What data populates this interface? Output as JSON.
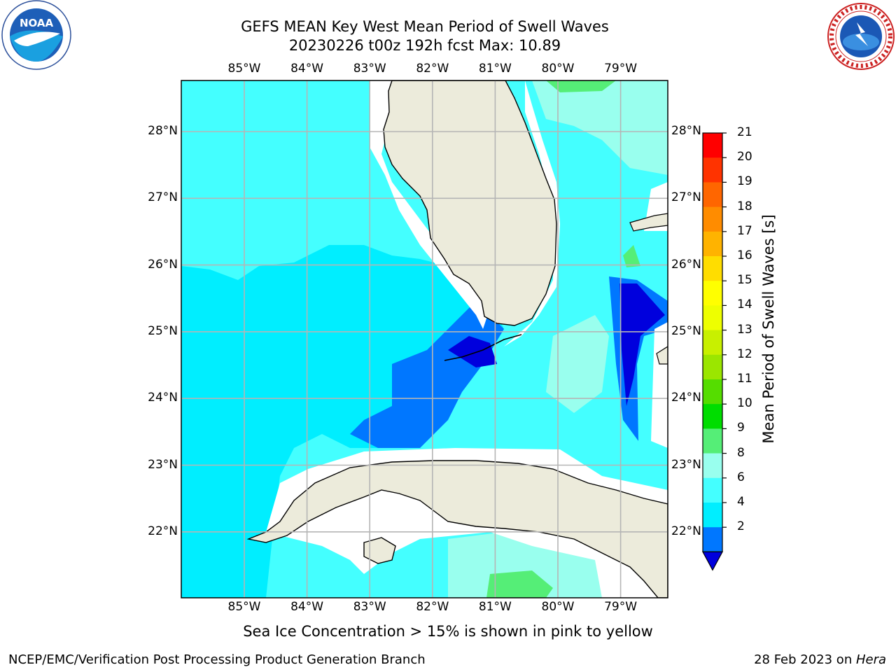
{
  "header": {
    "title_line1": "GEFS MEAN Key West Mean Period of Swell Waves",
    "title_line2": "20230226 t00z 192h fcst   Max: 10.89"
  },
  "logos": {
    "left": {
      "name": "NOAA",
      "icon": "noaa-logo",
      "text": "NOAA"
    },
    "right": {
      "name": "National Weather Service",
      "icon": "nws-logo",
      "text": "NATIONAL WEATHER SERVICE"
    }
  },
  "map": {
    "lon_ticks": [
      "85°W",
      "84°W",
      "83°W",
      "82°W",
      "81°W",
      "80°W",
      "79°W"
    ],
    "lat_ticks": [
      "28°N",
      "27°N",
      "26°N",
      "25°N",
      "24°N",
      "23°N",
      "22°N"
    ],
    "ocean_color": "#44ffff",
    "land_color": "#ecebdb",
    "gridline_color": "#b5b5b5"
  },
  "colorbar": {
    "label": "Mean Period of Swell Waves [s]",
    "ticks": [
      "21",
      "20",
      "19",
      "18",
      "17",
      "16",
      "15",
      "14",
      "13",
      "12",
      "11",
      "10",
      "9",
      "8",
      "6",
      "4",
      "2"
    ],
    "colors": [
      "#ff0000",
      "#ff3300",
      "#ff6600",
      "#ff8c00",
      "#ffb300",
      "#ffdd00",
      "#ffff00",
      "#eeff00",
      "#c8f000",
      "#9be600",
      "#55dd00",
      "#00dd00",
      "#55ee77",
      "#99ffee",
      "#44ffff",
      "#00eeff",
      "#0077ff",
      "#0000dd"
    ]
  },
  "caption": "Sea Ice Concentration > 15% is shown in pink to yellow",
  "footer": {
    "left": "NCEP/EMC/Verification Post Processing Product Generation Branch",
    "right_prefix": "28 Feb 2023 on ",
    "right_host": "Hera"
  }
}
